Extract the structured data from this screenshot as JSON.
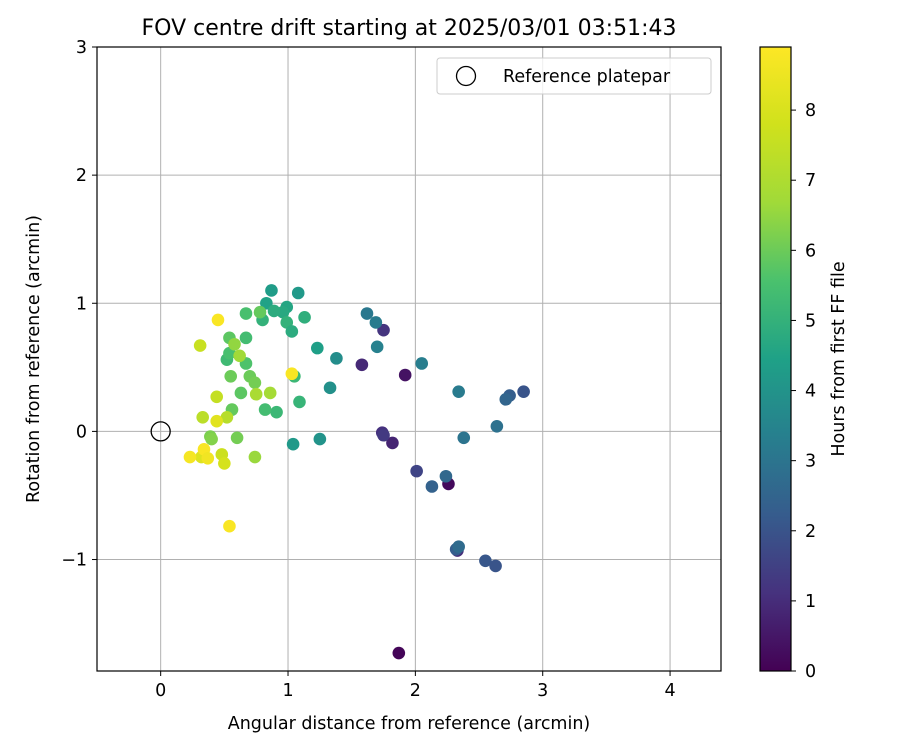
{
  "chart_data": {
    "type": "scatter",
    "title": "FOV centre drift starting at 2025/03/01 03:51:43",
    "xlabel": "Angular distance from reference (arcmin)",
    "ylabel": "Rotation from reference (arcmin)",
    "xlim": [
      -0.5,
      4.4
    ],
    "ylim": [
      -1.87,
      3.0
    ],
    "x_ticks": [
      0,
      1,
      2,
      3,
      4
    ],
    "x_tick_labels": [
      "0",
      "1",
      "2",
      "3",
      "4"
    ],
    "y_ticks": [
      -1,
      0,
      1,
      2,
      3
    ],
    "y_tick_labels": [
      "−1",
      "0",
      "1",
      "2",
      "3"
    ],
    "grid": true,
    "legend": {
      "placement": "top-right",
      "entries": [
        "Reference platepar"
      ]
    },
    "reference_point": {
      "x": 0,
      "y": 0,
      "label": "Reference platepar"
    },
    "colorbar": {
      "label": "Hours from first FF file",
      "colormap": "viridis",
      "range": [
        0,
        8.9
      ],
      "ticks": [
        0,
        1,
        2,
        3,
        4,
        5,
        6,
        7,
        8
      ],
      "tick_labels": [
        "0",
        "1",
        "2",
        "3",
        "4",
        "5",
        "6",
        "7",
        "8"
      ]
    },
    "points": [
      {
        "x": 1.87,
        "y": -1.73,
        "c": 0.1
      },
      {
        "x": 2.26,
        "y": -0.41,
        "c": 0.2
      },
      {
        "x": 1.92,
        "y": 0.44,
        "c": 0.4
      },
      {
        "x": 1.58,
        "y": 0.52,
        "c": 0.9
      },
      {
        "x": 1.75,
        "y": 0.79,
        "c": 1.2
      },
      {
        "x": 2.33,
        "y": -0.93,
        "c": 1.0
      },
      {
        "x": 1.82,
        "y": -0.09,
        "c": 0.8
      },
      {
        "x": 1.74,
        "y": -0.01,
        "c": 1.1
      },
      {
        "x": 1.75,
        "y": -0.03,
        "c": 1.3
      },
      {
        "x": 2.01,
        "y": -0.31,
        "c": 1.6
      },
      {
        "x": 2.13,
        "y": -0.43,
        "c": 2.4
      },
      {
        "x": 2.24,
        "y": -0.35,
        "c": 2.6
      },
      {
        "x": 2.32,
        "y": -0.92,
        "c": 2.3
      },
      {
        "x": 2.34,
        "y": -0.9,
        "c": 2.7
      },
      {
        "x": 2.55,
        "y": -1.01,
        "c": 2.1
      },
      {
        "x": 2.63,
        "y": -1.05,
        "c": 2.0
      },
      {
        "x": 2.85,
        "y": 0.31,
        "c": 2.0
      },
      {
        "x": 2.74,
        "y": 0.28,
        "c": 2.3
      },
      {
        "x": 2.71,
        "y": 0.25,
        "c": 2.5
      },
      {
        "x": 2.64,
        "y": 0.04,
        "c": 2.9
      },
      {
        "x": 2.38,
        "y": -0.05,
        "c": 3.0
      },
      {
        "x": 2.34,
        "y": 0.31,
        "c": 3.2
      },
      {
        "x": 2.05,
        "y": 0.53,
        "c": 3.3
      },
      {
        "x": 1.62,
        "y": 0.92,
        "c": 3.1
      },
      {
        "x": 1.69,
        "y": 0.85,
        "c": 3.2
      },
      {
        "x": 1.7,
        "y": 0.66,
        "c": 3.4
      },
      {
        "x": 1.38,
        "y": 0.57,
        "c": 3.8
      },
      {
        "x": 1.33,
        "y": 0.34,
        "c": 3.9
      },
      {
        "x": 1.25,
        "y": -0.06,
        "c": 4.0
      },
      {
        "x": 1.04,
        "y": -0.1,
        "c": 4.2
      },
      {
        "x": 1.23,
        "y": 0.65,
        "c": 4.4
      },
      {
        "x": 1.08,
        "y": 1.08,
        "c": 4.2
      },
      {
        "x": 0.87,
        "y": 1.1,
        "c": 4.3
      },
      {
        "x": 0.83,
        "y": 1.0,
        "c": 4.5
      },
      {
        "x": 0.99,
        "y": 0.97,
        "c": 4.6
      },
      {
        "x": 0.96,
        "y": 0.93,
        "c": 4.7
      },
      {
        "x": 0.89,
        "y": 0.94,
        "c": 4.8
      },
      {
        "x": 1.13,
        "y": 0.89,
        "c": 4.9
      },
      {
        "x": 0.99,
        "y": 0.85,
        "c": 5.0
      },
      {
        "x": 1.03,
        "y": 0.78,
        "c": 4.8
      },
      {
        "x": 0.8,
        "y": 0.87,
        "c": 5.0
      },
      {
        "x": 1.09,
        "y": 0.23,
        "c": 5.1
      },
      {
        "x": 1.05,
        "y": 0.43,
        "c": 5.2
      },
      {
        "x": 0.91,
        "y": 0.15,
        "c": 5.2
      },
      {
        "x": 0.82,
        "y": 0.17,
        "c": 5.4
      },
      {
        "x": 0.67,
        "y": 0.73,
        "c": 5.4
      },
      {
        "x": 0.67,
        "y": 0.92,
        "c": 5.5
      },
      {
        "x": 0.52,
        "y": 0.56,
        "c": 5.3
      },
      {
        "x": 0.54,
        "y": 0.61,
        "c": 5.5
      },
      {
        "x": 0.67,
        "y": 0.53,
        "c": 5.6
      },
      {
        "x": 0.63,
        "y": 0.3,
        "c": 5.8
      },
      {
        "x": 0.56,
        "y": 0.17,
        "c": 5.9
      },
      {
        "x": 0.54,
        "y": 0.73,
        "c": 5.8
      },
      {
        "x": 0.78,
        "y": 0.93,
        "c": 5.9
      },
      {
        "x": 0.55,
        "y": 0.43,
        "c": 6.0
      },
      {
        "x": 0.7,
        "y": 0.43,
        "c": 6.0
      },
      {
        "x": 0.74,
        "y": 0.38,
        "c": 6.1
      },
      {
        "x": 0.6,
        "y": -0.05,
        "c": 6.1
      },
      {
        "x": 0.39,
        "y": -0.04,
        "c": 6.2
      },
      {
        "x": 0.4,
        "y": -0.06,
        "c": 6.3
      },
      {
        "x": 0.58,
        "y": 0.68,
        "c": 6.5
      },
      {
        "x": 0.62,
        "y": 0.59,
        "c": 6.7
      },
      {
        "x": 0.86,
        "y": 0.3,
        "c": 6.8
      },
      {
        "x": 0.75,
        "y": 0.29,
        "c": 6.9
      },
      {
        "x": 0.74,
        "y": -0.2,
        "c": 6.6
      },
      {
        "x": 0.52,
        "y": 0.11,
        "c": 7.2
      },
      {
        "x": 0.33,
        "y": 0.11,
        "c": 7.3
      },
      {
        "x": 0.44,
        "y": 0.27,
        "c": 7.5
      },
      {
        "x": 0.31,
        "y": 0.67,
        "c": 7.6
      },
      {
        "x": 0.48,
        "y": -0.18,
        "c": 7.7
      },
      {
        "x": 0.5,
        "y": -0.25,
        "c": 7.9
      },
      {
        "x": 0.32,
        "y": -0.2,
        "c": 8.1
      },
      {
        "x": 0.44,
        "y": 0.08,
        "c": 8.2
      },
      {
        "x": 0.23,
        "y": -0.2,
        "c": 8.7
      },
      {
        "x": 0.34,
        "y": -0.14,
        "c": 8.8
      },
      {
        "x": 0.37,
        "y": -0.21,
        "c": 8.6
      },
      {
        "x": 0.45,
        "y": 0.87,
        "c": 8.8
      },
      {
        "x": 1.03,
        "y": 0.45,
        "c": 8.8
      },
      {
        "x": 0.54,
        "y": -0.74,
        "c": 8.8
      }
    ]
  }
}
